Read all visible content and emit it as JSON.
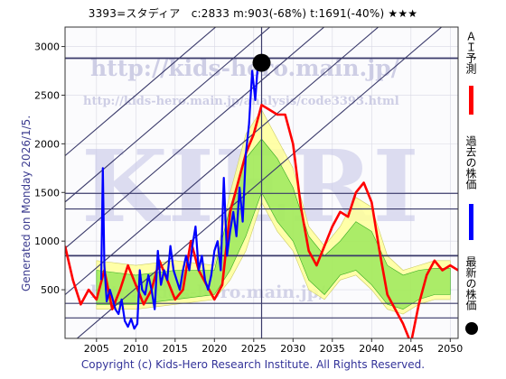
{
  "header": {
    "title": "3393=スタディア　c:2833  m:903(-68%)  t:1691(-40%)  ★★★"
  },
  "side_text": "Generated on Monday 2026/1/5.",
  "footer": {
    "copyright": "Copyright (c) Kids-Hero Research Institute. All Rights Reserved."
  },
  "watermarks": {
    "url_main": "http://kids-hero.main.jp/",
    "url_analysis": "http://kids-hero.main.jp/analysis/code3393.html",
    "big": "KIERI",
    "mid": "http://kids-hero.main.jp/"
  },
  "legend": [
    {
      "label": "ＡＩ予測",
      "color": "#ff0000"
    },
    {
      "label": "過去の株価",
      "color": "#0000ff"
    },
    {
      "label": "最新の株価",
      "color": "#000000"
    }
  ],
  "colors": {
    "ai_line": "#ff0000",
    "history_line": "#0000ff",
    "band_green": "#66dd33",
    "band_yellow": "#ffff99",
    "guide_line": "#3a3a6a",
    "marker": "#000000"
  },
  "chart_data": {
    "type": "line",
    "xlim": [
      2001,
      2051
    ],
    "ylim": [
      0,
      3200
    ],
    "x_ticks": [
      2005,
      2010,
      2015,
      2020,
      2025,
      2030,
      2035,
      2040,
      2045,
      2050
    ],
    "y_ticks": [
      500,
      1000,
      1500,
      2000,
      2500,
      3000
    ],
    "grid": true,
    "latest": {
      "x": 2026.0,
      "y": 2833
    },
    "horizontal_lines": [
      2880,
      1490,
      1330,
      850,
      360,
      210
    ],
    "vertical_line": 2026.0,
    "series": [
      {
        "key": "history",
        "points": [
          [
            2005.6,
            600
          ],
          [
            2005.8,
            1750
          ],
          [
            2006.0,
            750
          ],
          [
            2006.3,
            380
          ],
          [
            2006.7,
            500
          ],
          [
            2007.0,
            420
          ],
          [
            2007.4,
            300
          ],
          [
            2007.8,
            250
          ],
          [
            2008.2,
            400
          ],
          [
            2008.6,
            180
          ],
          [
            2009.0,
            120
          ],
          [
            2009.4,
            200
          ],
          [
            2009.8,
            100
          ],
          [
            2010.2,
            150
          ],
          [
            2010.5,
            700
          ],
          [
            2010.8,
            500
          ],
          [
            2011.2,
            450
          ],
          [
            2011.6,
            650
          ],
          [
            2012.0,
            500
          ],
          [
            2012.4,
            300
          ],
          [
            2012.8,
            900
          ],
          [
            2013.2,
            550
          ],
          [
            2013.6,
            700
          ],
          [
            2014.0,
            600
          ],
          [
            2014.4,
            950
          ],
          [
            2014.8,
            700
          ],
          [
            2015.2,
            600
          ],
          [
            2015.6,
            500
          ],
          [
            2016.0,
            700
          ],
          [
            2016.4,
            850
          ],
          [
            2016.8,
            700
          ],
          [
            2017.2,
            950
          ],
          [
            2017.6,
            1150
          ],
          [
            2018.0,
            700
          ],
          [
            2018.4,
            850
          ],
          [
            2018.8,
            600
          ],
          [
            2019.2,
            500
          ],
          [
            2019.6,
            650
          ],
          [
            2020.0,
            900
          ],
          [
            2020.4,
            1000
          ],
          [
            2020.8,
            700
          ],
          [
            2021.2,
            1650
          ],
          [
            2021.6,
            850
          ],
          [
            2022.0,
            1100
          ],
          [
            2022.4,
            1300
          ],
          [
            2022.8,
            1050
          ],
          [
            2023.2,
            1550
          ],
          [
            2023.6,
            1200
          ],
          [
            2024.0,
            1900
          ],
          [
            2024.4,
            2200
          ],
          [
            2024.8,
            2750
          ],
          [
            2025.2,
            2450
          ],
          [
            2025.6,
            2900
          ],
          [
            2026.0,
            2833
          ]
        ]
      },
      {
        "key": "ai",
        "points": [
          [
            2001,
            950
          ],
          [
            2002,
            600
          ],
          [
            2003,
            350
          ],
          [
            2004,
            500
          ],
          [
            2005,
            400
          ],
          [
            2006,
            700
          ],
          [
            2007,
            300
          ],
          [
            2008,
            500
          ],
          [
            2009,
            750
          ],
          [
            2010,
            550
          ],
          [
            2011,
            350
          ],
          [
            2012,
            500
          ],
          [
            2013,
            800
          ],
          [
            2014,
            600
          ],
          [
            2015,
            400
          ],
          [
            2016,
            500
          ],
          [
            2017,
            1000
          ],
          [
            2018,
            700
          ],
          [
            2019,
            550
          ],
          [
            2020,
            400
          ],
          [
            2021,
            550
          ],
          [
            2022,
            1300
          ],
          [
            2023,
            1600
          ],
          [
            2024,
            1900
          ],
          [
            2025,
            2100
          ],
          [
            2026,
            2400
          ],
          [
            2027,
            2350
          ],
          [
            2028,
            2300
          ],
          [
            2029,
            2300
          ],
          [
            2030,
            2000
          ],
          [
            2031,
            1350
          ],
          [
            2032,
            900
          ],
          [
            2033,
            750
          ],
          [
            2034,
            950
          ],
          [
            2035,
            1150
          ],
          [
            2036,
            1300
          ],
          [
            2037,
            1250
          ],
          [
            2038,
            1500
          ],
          [
            2039,
            1600
          ],
          [
            2040,
            1400
          ],
          [
            2041,
            900
          ],
          [
            2042,
            450
          ],
          [
            2043,
            300
          ],
          [
            2044,
            150
          ],
          [
            2045,
            -50
          ],
          [
            2046,
            350
          ],
          [
            2047,
            650
          ],
          [
            2048,
            800
          ],
          [
            2049,
            700
          ],
          [
            2050,
            750
          ],
          [
            2051,
            700
          ]
        ]
      }
    ],
    "bands": {
      "yellow_upper": [
        [
          2005,
          800
        ],
        [
          2010,
          750
        ],
        [
          2015,
          800
        ],
        [
          2020,
          750
        ],
        [
          2022,
          1500
        ],
        [
          2024,
          2100
        ],
        [
          2026,
          2350
        ],
        [
          2028,
          2050
        ],
        [
          2030,
          1750
        ],
        [
          2032,
          1150
        ],
        [
          2034,
          950
        ],
        [
          2036,
          1150
        ],
        [
          2038,
          1450
        ],
        [
          2040,
          1350
        ],
        [
          2042,
          850
        ],
        [
          2044,
          700
        ],
        [
          2046,
          750
        ],
        [
          2048,
          800
        ],
        [
          2050,
          800
        ]
      ],
      "yellow_lower": [
        [
          2005,
          300
        ],
        [
          2010,
          300
        ],
        [
          2015,
          350
        ],
        [
          2020,
          400
        ],
        [
          2022,
          600
        ],
        [
          2024,
          900
        ],
        [
          2026,
          1400
        ],
        [
          2028,
          1100
        ],
        [
          2030,
          900
        ],
        [
          2032,
          500
        ],
        [
          2034,
          400
        ],
        [
          2036,
          600
        ],
        [
          2038,
          650
        ],
        [
          2040,
          500
        ],
        [
          2042,
          300
        ],
        [
          2044,
          250
        ],
        [
          2046,
          350
        ],
        [
          2048,
          400
        ],
        [
          2050,
          400
        ]
      ],
      "green_upper": [
        [
          2005,
          700
        ],
        [
          2010,
          650
        ],
        [
          2015,
          700
        ],
        [
          2020,
          700
        ],
        [
          2022,
          1350
        ],
        [
          2024,
          1850
        ],
        [
          2026,
          2050
        ],
        [
          2028,
          1850
        ],
        [
          2030,
          1550
        ],
        [
          2032,
          1050
        ],
        [
          2034,
          850
        ],
        [
          2036,
          1000
        ],
        [
          2038,
          1200
        ],
        [
          2040,
          1100
        ],
        [
          2042,
          750
        ],
        [
          2044,
          650
        ],
        [
          2046,
          700
        ],
        [
          2048,
          720
        ],
        [
          2050,
          720
        ]
      ],
      "green_lower": [
        [
          2005,
          350
        ],
        [
          2010,
          350
        ],
        [
          2015,
          400
        ],
        [
          2020,
          450
        ],
        [
          2022,
          700
        ],
        [
          2024,
          1050
        ],
        [
          2026,
          1500
        ],
        [
          2028,
          1200
        ],
        [
          2030,
          1000
        ],
        [
          2032,
          600
        ],
        [
          2034,
          450
        ],
        [
          2036,
          650
        ],
        [
          2038,
          700
        ],
        [
          2040,
          550
        ],
        [
          2042,
          350
        ],
        [
          2044,
          300
        ],
        [
          2046,
          400
        ],
        [
          2048,
          450
        ],
        [
          2050,
          450
        ]
      ]
    }
  }
}
